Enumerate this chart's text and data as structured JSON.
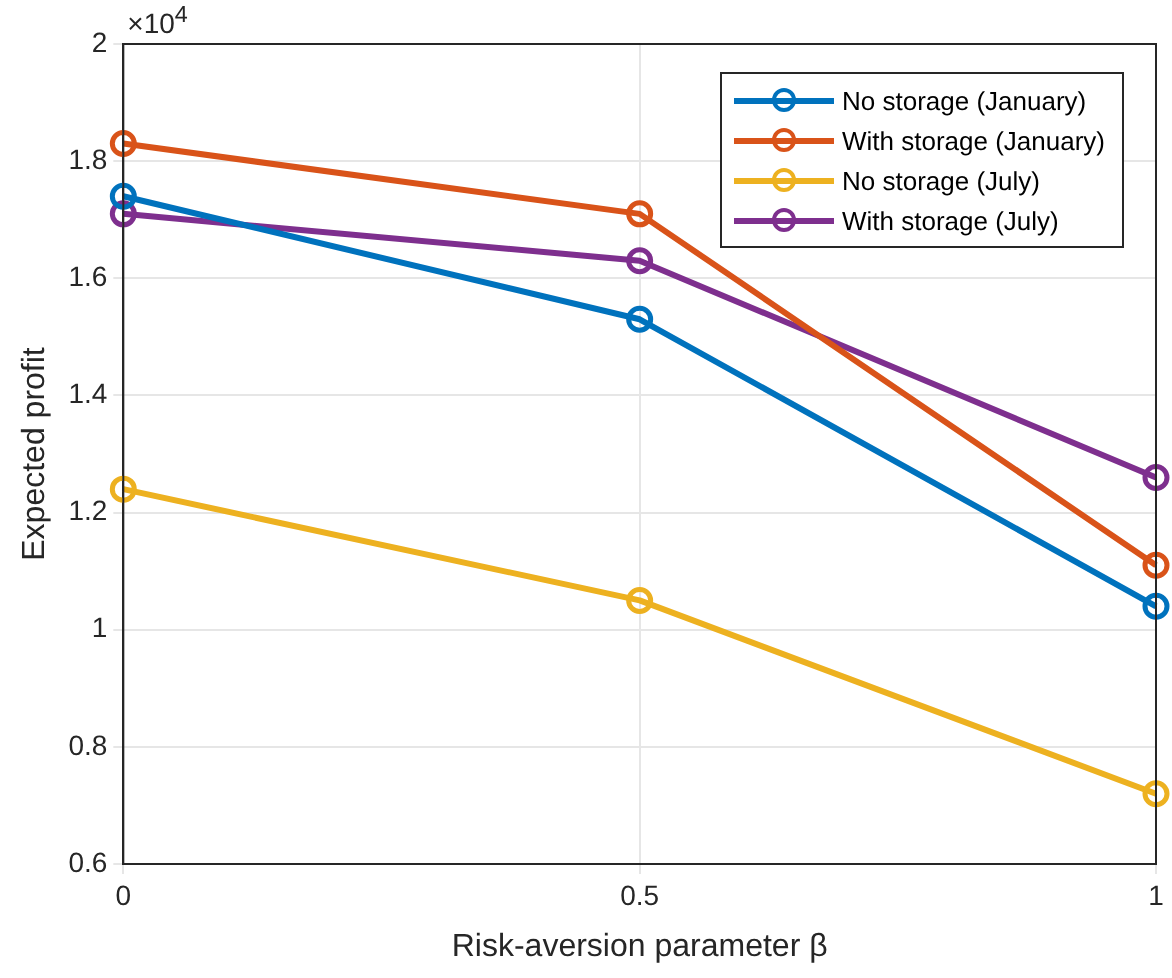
{
  "chart_data": {
    "type": "line",
    "xlabel": "Risk-aversion parameter β",
    "ylabel": "Expected profit",
    "annotations": [
      "×10$^{4}$"
    ],
    "x": [
      0,
      0.5,
      1
    ],
    "xlim": [
      0,
      1
    ],
    "xticks": [
      0,
      0.5,
      1
    ],
    "ylim": [
      0.6,
      2
    ],
    "yticks": [
      0.6,
      0.8,
      1,
      1.2,
      1.4,
      1.6,
      1.8,
      2
    ],
    "series": [
      {
        "name": "No storage (January)",
        "color": "#0072bd",
        "values": [
          1.74,
          1.53,
          1.04
        ]
      },
      {
        "name": "With storage (January)",
        "color": "#d95319",
        "values": [
          1.83,
          1.71,
          1.11
        ]
      },
      {
        "name": "No storage (July)",
        "color": "#edb120",
        "values": [
          1.24,
          1.05,
          0.72
        ]
      },
      {
        "name": "With storage (July)",
        "color": "#7e2f8e",
        "values": [
          1.71,
          1.63,
          1.26
        ]
      }
    ],
    "grid": true,
    "legend": "top right",
    "marker": "circle",
    "line_style": "solid"
  }
}
